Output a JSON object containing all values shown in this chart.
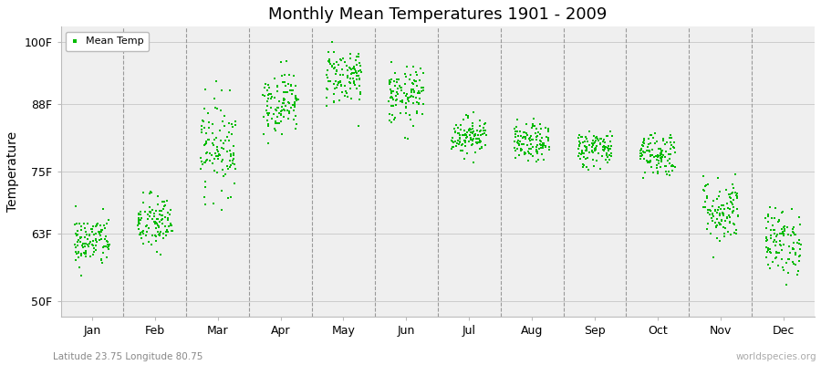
{
  "title": "Monthly Mean Temperatures 1901 - 2009",
  "ylabel": "Temperature",
  "xlabel_bottom": "Latitude 23.75 Longitude 80.75",
  "watermark": "worldspecies.org",
  "legend_label": "Mean Temp",
  "dot_color": "#00bb00",
  "fig_bg_color": "#ffffff",
  "plot_bg_color": "#efefef",
  "yticks": [
    50,
    63,
    75,
    88,
    100
  ],
  "ytick_labels": [
    "50F",
    "63F",
    "75F",
    "88F",
    "100F"
  ],
  "ylim": [
    47,
    103
  ],
  "months": [
    "Jan",
    "Feb",
    "Mar",
    "Apr",
    "May",
    "Jun",
    "Jul",
    "Aug",
    "Sep",
    "Oct",
    "Nov",
    "Dec"
  ],
  "monthly_mean_temps_F": [
    61.5,
    65.0,
    80.0,
    88.5,
    93.5,
    89.5,
    82.0,
    80.5,
    79.5,
    78.5,
    67.5,
    61.5
  ],
  "monthly_std_F": [
    2.5,
    2.8,
    4.5,
    3.0,
    2.8,
    2.8,
    1.8,
    1.8,
    1.8,
    2.2,
    3.2,
    3.2
  ],
  "n_years": 109,
  "seed": 42
}
